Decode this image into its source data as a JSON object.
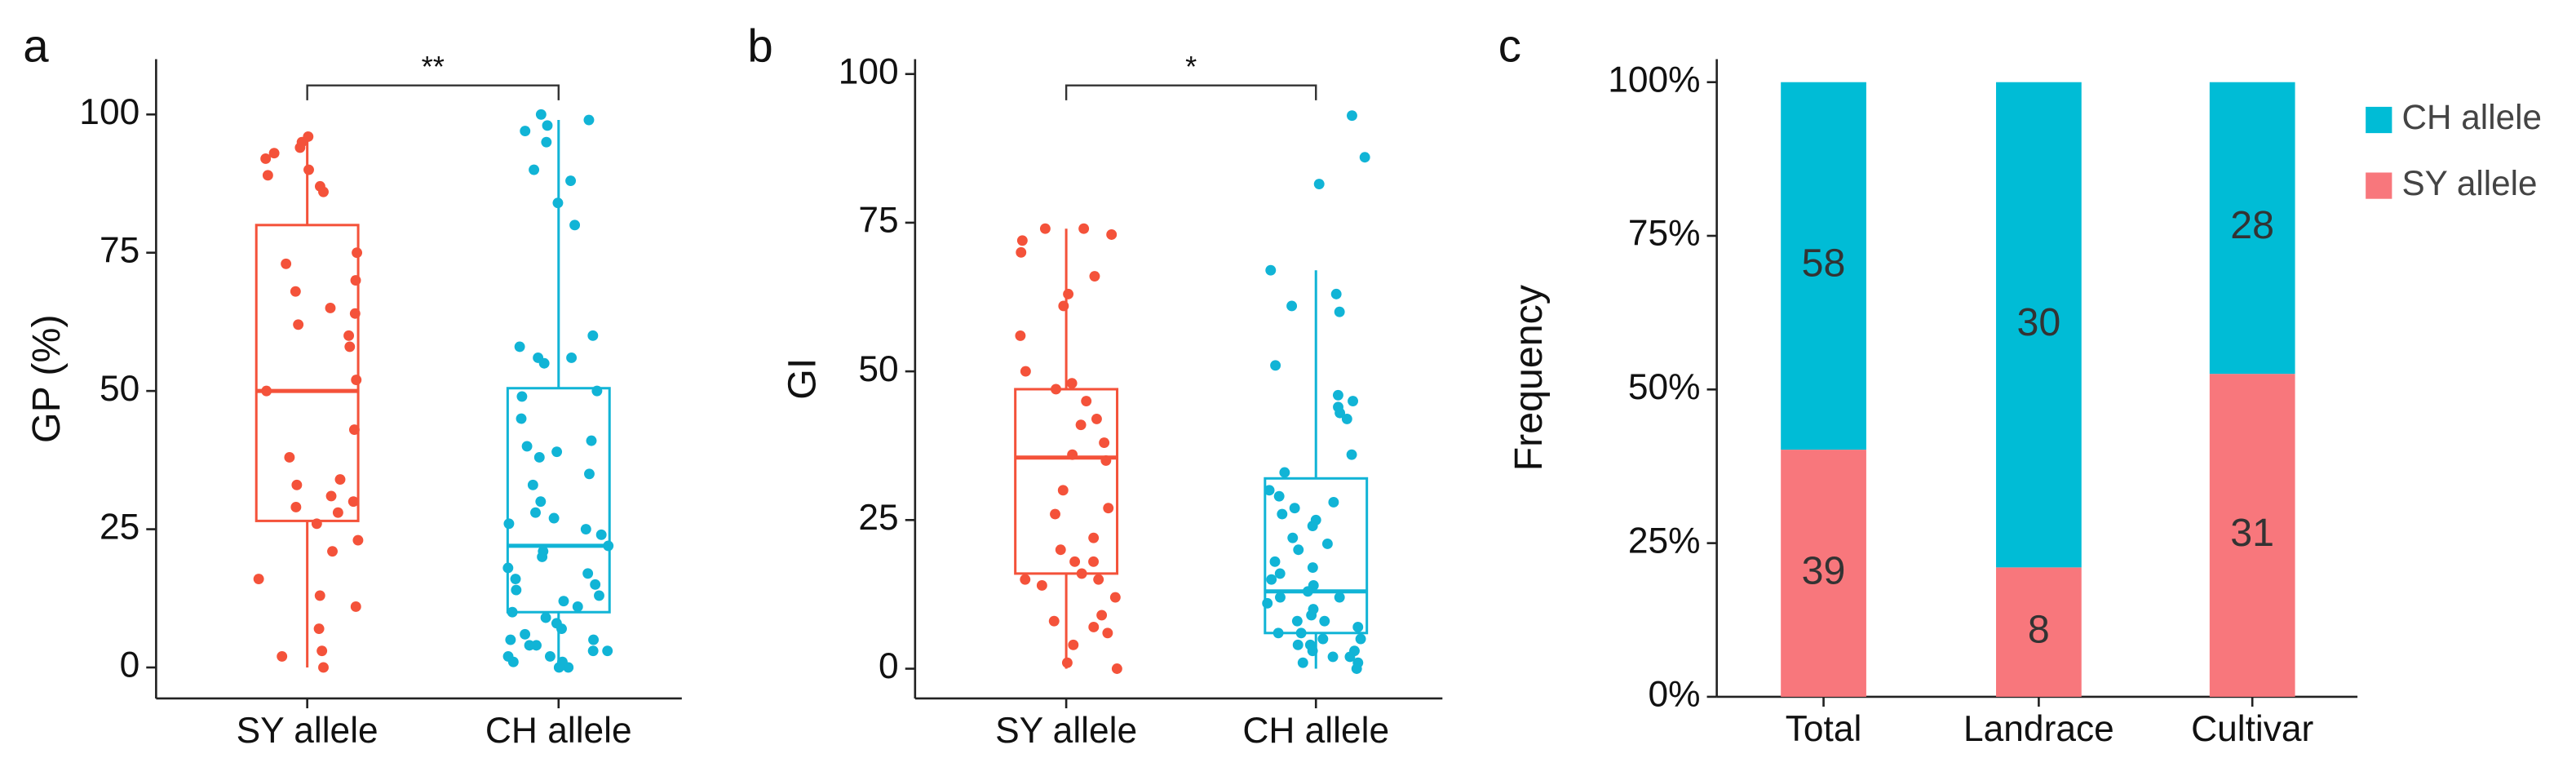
{
  "chart_data": [
    {
      "type": "box",
      "panel": "a",
      "ylabel": "GP (%)",
      "annotation": "**",
      "categories": [
        "SY allele",
        "CH allele"
      ],
      "colors": [
        "#F4523A",
        "#11B4D6"
      ],
      "ylim": [
        -5.6,
        110
      ],
      "yticks": [
        0,
        25,
        50,
        75,
        100
      ],
      "boxes": [
        {
          "whislo": 0,
          "q1": 26.5,
          "med": 50,
          "q3": 80,
          "whishi": 96,
          "points": [
            96,
            95,
            94,
            93,
            92,
            90,
            89,
            87,
            86,
            75,
            73,
            70,
            68,
            65,
            64,
            62,
            60,
            58,
            52,
            50,
            43,
            38,
            34,
            33,
            31,
            30,
            29,
            28,
            26,
            23,
            21,
            16,
            13,
            11,
            7,
            3,
            2,
            0
          ]
        },
        {
          "whislo": 0,
          "q1": 10,
          "med": 22,
          "q3": 50.5,
          "whishi": 99,
          "points": [
            100,
            99,
            98,
            97,
            95,
            90,
            88,
            84,
            80,
            60,
            58,
            56,
            56,
            55,
            50,
            49,
            45,
            41,
            40,
            39,
            38,
            35,
            33,
            30,
            28,
            27,
            26,
            25,
            24,
            22,
            21,
            20,
            18,
            17,
            16,
            15,
            14,
            13,
            12,
            11,
            10,
            9,
            8,
            7,
            6,
            5,
            5,
            4,
            4,
            3,
            3,
            2,
            2,
            1,
            1,
            0,
            0
          ]
        }
      ]
    },
    {
      "type": "box",
      "panel": "b",
      "ylabel": "GI",
      "annotation": "*",
      "categories": [
        "SY allele",
        "CH allele"
      ],
      "colors": [
        "#F4523A",
        "#11B4D6"
      ],
      "ylim": [
        -5,
        102.5
      ],
      "yticks": [
        0,
        25,
        50,
        75,
        100
      ],
      "boxes": [
        {
          "whislo": 0,
          "q1": 16,
          "med": 35.5,
          "q3": 47,
          "whishi": 74,
          "points": [
            74,
            74,
            73,
            72,
            70,
            66,
            63,
            61,
            56,
            50,
            48,
            47,
            45,
            42,
            41,
            38,
            36,
            35,
            30,
            27,
            26,
            22,
            20,
            18,
            18,
            16,
            15,
            15,
            14,
            12,
            9,
            8,
            7,
            6,
            4,
            1,
            0
          ]
        },
        {
          "whislo": 0,
          "q1": 6,
          "med": 13,
          "q3": 32,
          "whishi": 67,
          "points": [
            93,
            86,
            81.5,
            67,
            63,
            61,
            60,
            51,
            46,
            45,
            44,
            43,
            42,
            36,
            33,
            30,
            29,
            28,
            27,
            26,
            25,
            24,
            22,
            21,
            20,
            18,
            17,
            16,
            15,
            14,
            13,
            12,
            12,
            11,
            10,
            9,
            8,
            8,
            7,
            6,
            6,
            5,
            5,
            4,
            4,
            3,
            3,
            2,
            2,
            1,
            1,
            0
          ]
        }
      ]
    },
    {
      "type": "bar",
      "panel": "c",
      "ylabel": "Frequency",
      "stacked": "percent",
      "legend": "right",
      "categories": [
        "Total",
        "Landrace",
        "Cultivar"
      ],
      "series": [
        {
          "name": "SY allele",
          "color": "#F8777C",
          "values": [
            39,
            8,
            31
          ]
        },
        {
          "name": "CH allele",
          "color": "#00BCD6",
          "values": [
            58,
            30,
            28
          ]
        }
      ],
      "ylim": [
        0,
        100
      ],
      "yticks": [
        {
          "value": 0,
          "label": "0%"
        },
        {
          "value": 25,
          "label": "25%"
        },
        {
          "value": 50,
          "label": "50%"
        },
        {
          "value": 75,
          "label": "75%"
        },
        {
          "value": 100,
          "label": "100%"
        }
      ]
    }
  ]
}
